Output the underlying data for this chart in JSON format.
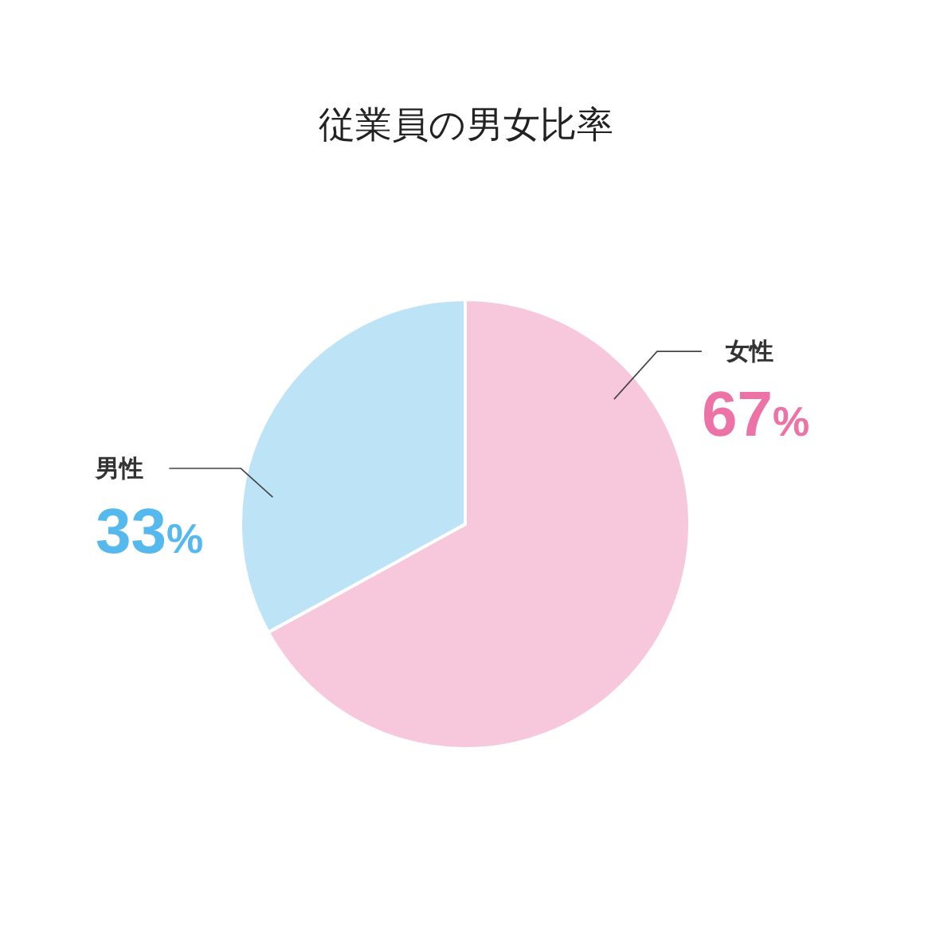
{
  "chart_data": {
    "type": "pie",
    "title": "従業員の男女比率",
    "categories": [
      "女性",
      "男性"
    ],
    "values": [
      67,
      33
    ],
    "colors": [
      "#f7c8dc",
      "#bde3f7"
    ],
    "value_labels": [
      "67%",
      "33%"
    ]
  }
}
